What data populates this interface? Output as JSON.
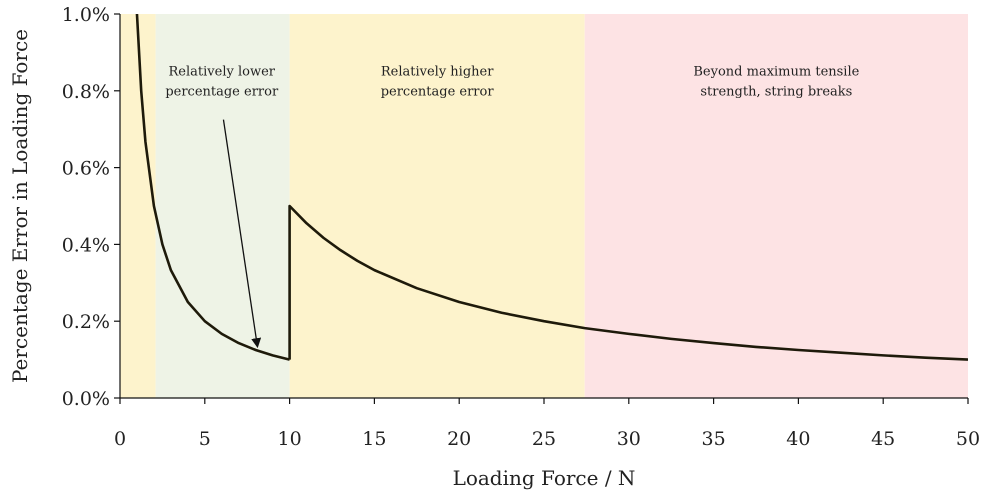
{
  "chart_data": {
    "type": "line",
    "xlabel": "Loading Force / N",
    "ylabel": "Percentage Error in Loading Force",
    "xlim": [
      0,
      50
    ],
    "ylim": [
      0.0,
      1.0
    ],
    "x_ticks": [
      0,
      5,
      10,
      15,
      20,
      25,
      30,
      35,
      40,
      45,
      50
    ],
    "x_tick_labels": [
      "0",
      "5",
      "10",
      "15",
      "20",
      "25",
      "30",
      "35",
      "40",
      "45",
      "50"
    ],
    "y_ticks": [
      0.0,
      0.2,
      0.4,
      0.6,
      0.8,
      1.0
    ],
    "y_tick_labels": [
      "0.0%",
      "0.2%",
      "0.4%",
      "0.6%",
      "0.8%",
      "1.0%"
    ],
    "grid": false,
    "legend": "none",
    "regions": [
      {
        "x_start": 0,
        "x_end": 2.1,
        "color": "#fdf3cc"
      },
      {
        "x_start": 2.1,
        "x_end": 10,
        "color": "#eef3e6"
      },
      {
        "x_start": 10,
        "x_end": 27.4,
        "color": "#fdf3cc"
      },
      {
        "x_start": 27.4,
        "x_end": 50,
        "color": "#fde3e4"
      }
    ],
    "series": [
      {
        "color": "#1e1a0a",
        "segments": [
          {
            "x": [
              0.9,
              1.0,
              1.25,
              1.5,
              2.0,
              2.5,
              3.0,
              4.0,
              5.0,
              6.0,
              7.0,
              8.0,
              9.0,
              10.0
            ],
            "y": [
              1.11,
              1.0,
              0.8,
              0.667,
              0.5,
              0.4,
              0.333,
              0.25,
              0.2,
              0.167,
              0.143,
              0.125,
              0.111,
              0.1
            ]
          },
          {
            "x": [
              10.0,
              10.0,
              11,
              12,
              13,
              14,
              15,
              17.5,
              20,
              22.5,
              25,
              27.4,
              30,
              32.5,
              35,
              37.5,
              40,
              42.5,
              45,
              47.5,
              50
            ],
            "y": [
              0.1,
              0.5,
              0.455,
              0.417,
              0.385,
              0.357,
              0.333,
              0.286,
              0.25,
              0.222,
              0.2,
              0.182,
              0.167,
              0.154,
              0.143,
              0.133,
              0.125,
              0.118,
              0.111,
              0.105,
              0.1
            ]
          }
        ]
      }
    ],
    "annotations": [
      {
        "lines": [
          "Relatively lower",
          "percentage error"
        ],
        "x": 6.0,
        "y": 0.84,
        "arrow_from": [
          6.1,
          0.725
        ],
        "arrow_to": [
          8.1,
          0.135
        ]
      },
      {
        "lines": [
          "Relatively higher",
          "percentage error"
        ],
        "x": 18.7,
        "y": 0.84
      },
      {
        "lines": [
          "Beyond maximum tensile",
          "strength, string breaks"
        ],
        "x": 38.7,
        "y": 0.84
      }
    ]
  }
}
